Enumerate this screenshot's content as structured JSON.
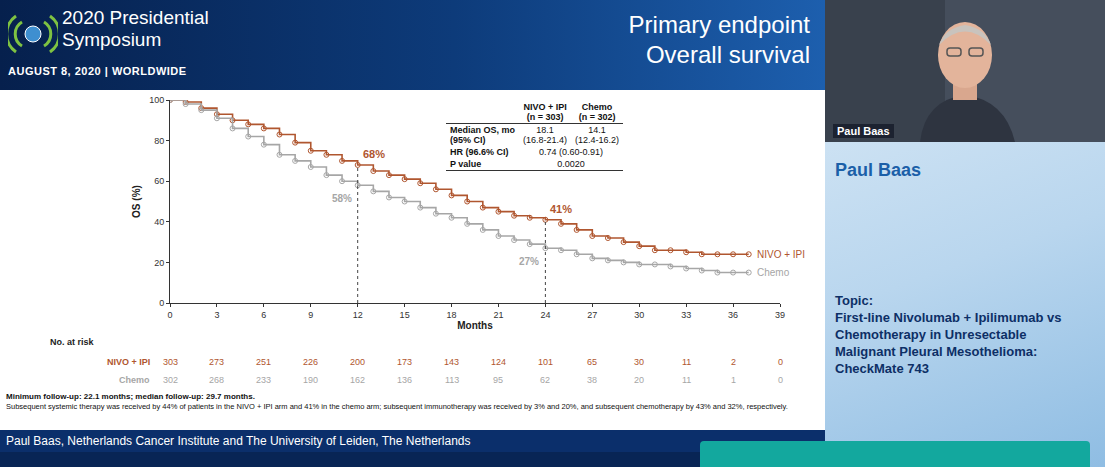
{
  "header": {
    "event_title": [
      "2020 Presidential",
      "Symposium"
    ],
    "date_line": "AUGUST 8, 2020 | WORLDWIDE",
    "slide_title": [
      "Primary endpoint",
      "Overall survival"
    ]
  },
  "chart_data": {
    "type": "line",
    "x_label": "Months",
    "y_label": "OS (%)",
    "x": [
      0,
      1,
      2,
      3,
      4,
      5,
      6,
      7,
      8,
      9,
      10,
      11,
      12,
      13,
      14,
      15,
      16,
      17,
      18,
      19,
      20,
      21,
      22,
      23,
      24,
      25,
      26,
      27,
      28,
      29,
      30,
      31,
      32,
      33,
      34,
      35,
      36,
      37
    ],
    "series": [
      {
        "name": "NIVO + IPI",
        "color": "#b0562f",
        "marker": "circle-open",
        "line_style": "solid",
        "values": [
          100,
          99,
          96,
          93,
          90,
          88,
          86,
          83,
          79,
          75,
          73,
          70,
          68,
          65,
          63,
          61,
          59,
          56,
          53,
          50,
          47,
          45,
          43,
          42,
          41,
          39,
          36,
          33,
          32,
          30,
          28,
          26,
          26,
          25,
          24,
          24,
          24,
          24
        ],
        "at_risk": [
          303,
          273,
          251,
          226,
          200,
          173,
          143,
          124,
          101,
          65,
          30,
          11,
          2,
          0
        ]
      },
      {
        "name": "Chemo",
        "color": "#a6a6a6",
        "marker": "circle-open",
        "line_style": "solid",
        "values": [
          100,
          98,
          95,
          91,
          86,
          82,
          78,
          73,
          70,
          67,
          63,
          60,
          58,
          55,
          52,
          50,
          47,
          44,
          42,
          39,
          36,
          33,
          31,
          29,
          27,
          26,
          24,
          22,
          21,
          20,
          19,
          19,
          18,
          17,
          16,
          15,
          15,
          15
        ],
        "at_risk": [
          302,
          268,
          233,
          190,
          162,
          136,
          113,
          95,
          62,
          38,
          20,
          11,
          1,
          0
        ]
      }
    ],
    "at_risk_title": "No. at risk",
    "landmarks": [
      {
        "month": 12,
        "values": [
          68,
          58
        ],
        "value_labels": [
          "68%",
          "58%"
        ]
      },
      {
        "month": 24,
        "values": [
          41,
          27
        ],
        "value_labels": [
          "41%",
          "27%"
        ]
      }
    ],
    "xlim": [
      0,
      39
    ],
    "xticks": [
      0,
      3,
      6,
      9,
      12,
      15,
      18,
      21,
      24,
      27,
      30,
      33,
      36,
      39
    ],
    "ylim": [
      0,
      100
    ],
    "yticks": [
      0,
      20,
      40,
      60,
      80,
      100
    ],
    "grid": false
  },
  "stats_table": {
    "header": [
      [],
      [
        "NIVO + IPI",
        "(n = 303)"
      ],
      [
        "Chemo",
        "(n = 302)"
      ]
    ],
    "rows": [
      {
        "label": [
          "Median OS, mo",
          "(95% CI)"
        ],
        "cells": [
          [
            "18.1",
            "(16.8-21.4)"
          ],
          [
            "14.1",
            "(12.4-16.2)"
          ]
        ]
      },
      {
        "label": [
          "HR (96.6% CI)"
        ],
        "cells": [
          [
            "0.74 (0.60-0.91)"
          ]
        ]
      },
      {
        "label": [
          "P value"
        ],
        "cells": [
          [
            "0.0020"
          ]
        ]
      }
    ]
  },
  "footnotes": [
    "Minimum follow-up: 22.1 months; median follow-up: 29.7 months.",
    "Subsequent systemic therapy was received by 44% of patients in the NIVO + IPI arm and 41% in the chemo arm; subsequent immunotherapy was received by 3% and 20%, and subsequent chemotherapy by 43% and 32%, respectively."
  ],
  "footer": "Paul Baas, Netherlands Cancer Institute and The University of Leiden, The Netherlands",
  "speaker": {
    "video_label": "Paul Baas",
    "name": "Paul Baas",
    "topic_heading": "Topic:",
    "topic": "First-line Nivolumab + Ipilimumab vs Chemotherapy in Unresectable Malignant Pleural Mesothelioma: CheckMate 743"
  }
}
